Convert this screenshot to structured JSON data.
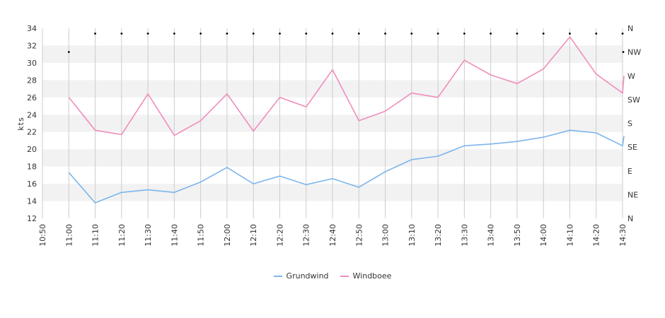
{
  "chart_data": {
    "type": "line",
    "ylabel": "kts",
    "ylim": [
      12,
      34
    ],
    "yticks": [
      12,
      14,
      16,
      18,
      20,
      22,
      24,
      26,
      28,
      30,
      32,
      34
    ],
    "x": [
      "10:50",
      "11:00",
      "11:10",
      "11:20",
      "11:30",
      "11:40",
      "11:50",
      "12:00",
      "12:10",
      "12:20",
      "12:30",
      "12:40",
      "12:50",
      "13:00",
      "13:10",
      "13:20",
      "13:30",
      "13:40",
      "13:50",
      "14:00",
      "14:10",
      "14:20",
      "14:30"
    ],
    "direction_axis": {
      "labels": [
        "N",
        "NE",
        "E",
        "SE",
        "S",
        "SW",
        "W",
        "NW",
        "N"
      ],
      "range_degrees": [
        0,
        360
      ]
    },
    "series": [
      {
        "name": "Grundwind",
        "color": "#7cb5ec",
        "points": [
          [
            "11:00",
            17.3
          ],
          [
            "11:10",
            13.8
          ],
          [
            "11:20",
            15.0
          ],
          [
            "11:30",
            15.3
          ],
          [
            "11:40",
            15.0
          ],
          [
            "11:50",
            16.2
          ],
          [
            "12:00",
            17.9
          ],
          [
            "12:10",
            16.0
          ],
          [
            "12:20",
            16.9
          ],
          [
            "12:30",
            15.9
          ],
          [
            "12:40",
            16.6
          ],
          [
            "12:50",
            15.6
          ],
          [
            "13:00",
            17.4
          ],
          [
            "13:10",
            18.8
          ],
          [
            "13:20",
            19.2
          ],
          [
            "13:30",
            20.4
          ],
          [
            "13:40",
            20.6
          ],
          [
            "13:50",
            20.9
          ],
          [
            "14:00",
            21.4
          ],
          [
            "14:10",
            22.2
          ],
          [
            "14:20",
            21.9
          ],
          [
            "14:30",
            20.4
          ],
          [
            "14:30",
            21.5
          ]
        ]
      },
      {
        "name": "Windboee",
        "color": "#f08dbd",
        "points": [
          [
            "11:00",
            26.0
          ],
          [
            "11:10",
            22.2
          ],
          [
            "11:20",
            21.7
          ],
          [
            "11:30",
            26.4
          ],
          [
            "11:40",
            21.6
          ],
          [
            "11:50",
            23.3
          ],
          [
            "12:00",
            26.4
          ],
          [
            "12:10",
            22.1
          ],
          [
            "12:20",
            26.0
          ],
          [
            "12:30",
            24.9
          ],
          [
            "12:40",
            29.2
          ],
          [
            "12:50",
            23.3
          ],
          [
            "13:00",
            24.4
          ],
          [
            "13:10",
            26.5
          ],
          [
            "13:20",
            26.0
          ],
          [
            "13:30",
            30.3
          ],
          [
            "13:40",
            28.6
          ],
          [
            "13:50",
            27.6
          ],
          [
            "14:00",
            29.3
          ],
          [
            "14:10",
            33.0
          ],
          [
            "14:20",
            28.7
          ],
          [
            "14:30",
            26.5
          ],
          [
            "14:30",
            28.5
          ]
        ]
      },
      {
        "name": "",
        "color": "#000000",
        "points_degrees": [
          [
            "11:00",
            315
          ],
          [
            "11:10",
            350
          ],
          [
            "11:20",
            350
          ],
          [
            "11:30",
            350
          ],
          [
            "11:40",
            350
          ],
          [
            "11:50",
            350
          ],
          [
            "12:00",
            350
          ],
          [
            "12:10",
            350
          ],
          [
            "12:20",
            350
          ],
          [
            "12:30",
            350
          ],
          [
            "12:40",
            350
          ],
          [
            "12:50",
            350
          ],
          [
            "13:00",
            350
          ],
          [
            "13:10",
            350
          ],
          [
            "13:20",
            350
          ],
          [
            "13:30",
            350
          ],
          [
            "13:40",
            350
          ],
          [
            "13:50",
            350
          ],
          [
            "14:00",
            350
          ],
          [
            "14:10",
            350
          ],
          [
            "14:20",
            350
          ],
          [
            "14:30",
            350
          ],
          [
            "14:30",
            315
          ]
        ]
      }
    ],
    "grid": true,
    "legend_position": "bottom-center"
  }
}
